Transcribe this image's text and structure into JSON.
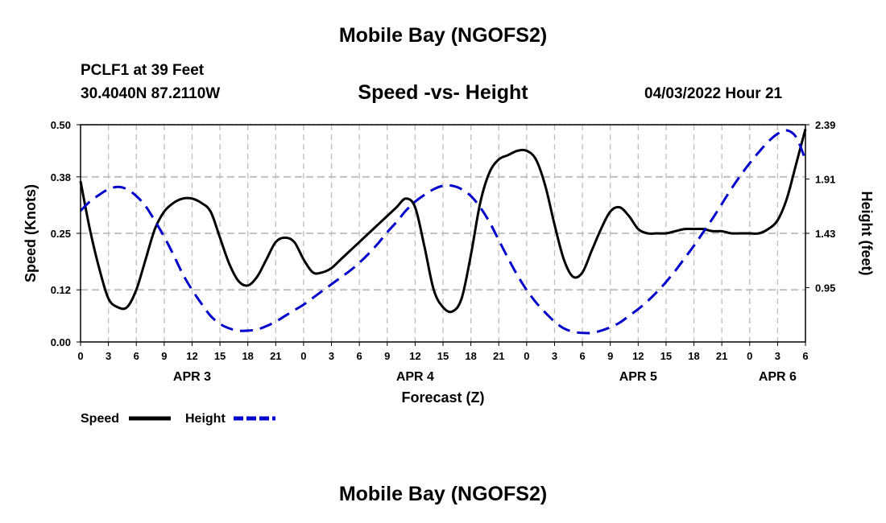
{
  "header": {
    "title": "Mobile Bay (NGOFS2)",
    "station": "PCLF1 at 39 Feet",
    "coords": "30.4040N  87.2110W",
    "subtitle": "Speed -vs- Height",
    "datetime": "04/03/2022 Hour 21",
    "footer_title": "Mobile Bay (NGOFS2)"
  },
  "chart_data": {
    "type": "line",
    "xlabel": "Forecast (Z)",
    "ylabel": "Speed (Knots)",
    "y2label": "Height (feet)",
    "x_range_hours": [
      0,
      78
    ],
    "ylim": [
      0,
      0.5
    ],
    "y2lim": [
      0.47,
      2.39
    ],
    "y_ticks": [
      "0.00",
      "0.12",
      "0.25",
      "0.38",
      "0.50"
    ],
    "y2_ticks": [
      "0.95",
      "1.43",
      "1.91",
      "2.39"
    ],
    "x_tick_labels": [
      "0",
      "3",
      "6",
      "9",
      "12",
      "15",
      "18",
      "21",
      "0",
      "3",
      "6",
      "9",
      "12",
      "15",
      "18",
      "21",
      "0",
      "3",
      "6",
      "9",
      "12",
      "15",
      "18",
      "21",
      "0",
      "3",
      "6"
    ],
    "day_labels": [
      {
        "label": "APR 3",
        "hour": 12
      },
      {
        "label": "APR 4",
        "hour": 36
      },
      {
        "label": "APR 5",
        "hour": 60
      },
      {
        "label": "APR 6",
        "hour": 75
      }
    ],
    "grid": true,
    "series": [
      {
        "name": "Speed",
        "axis": "left",
        "color": "#000000",
        "dash": "solid",
        "x": [
          0,
          1,
          2,
          3,
          4,
          5,
          6,
          7,
          8,
          9,
          10,
          11,
          12,
          13,
          14,
          15,
          16,
          17,
          18,
          19,
          20,
          21,
          22,
          23,
          24,
          25,
          26,
          27,
          28,
          29,
          30,
          31,
          32,
          33,
          34,
          35,
          36,
          37,
          38,
          39,
          40,
          41,
          42,
          43,
          44,
          45,
          46,
          47,
          48,
          49,
          50,
          51,
          52,
          53,
          54,
          55,
          56,
          57,
          58,
          59,
          60,
          61,
          62,
          63,
          64,
          65,
          66,
          67,
          68,
          69,
          70,
          71,
          72,
          73,
          74,
          75,
          76,
          77,
          78
        ],
        "values": [
          0.37,
          0.26,
          0.17,
          0.1,
          0.08,
          0.08,
          0.12,
          0.19,
          0.26,
          0.3,
          0.32,
          0.33,
          0.33,
          0.32,
          0.3,
          0.24,
          0.18,
          0.14,
          0.13,
          0.15,
          0.19,
          0.23,
          0.24,
          0.23,
          0.19,
          0.16,
          0.16,
          0.17,
          0.19,
          0.21,
          0.23,
          0.25,
          0.27,
          0.29,
          0.31,
          0.33,
          0.31,
          0.22,
          0.12,
          0.08,
          0.07,
          0.1,
          0.2,
          0.32,
          0.39,
          0.42,
          0.43,
          0.44,
          0.44,
          0.42,
          0.36,
          0.27,
          0.19,
          0.15,
          0.16,
          0.21,
          0.26,
          0.3,
          0.31,
          0.29,
          0.26,
          0.25,
          0.25,
          0.25,
          0.255,
          0.26,
          0.26,
          0.26,
          0.255,
          0.255,
          0.25,
          0.25,
          0.25,
          0.25,
          0.26,
          0.28,
          0.33,
          0.41,
          0.49
        ]
      },
      {
        "name": "Height",
        "axis": "right",
        "color": "#0000cc",
        "dash": "dashed",
        "x": [
          0,
          1,
          2,
          3,
          4,
          5,
          6,
          7,
          8,
          9,
          10,
          11,
          12,
          13,
          14,
          15,
          16,
          17,
          18,
          19,
          20,
          21,
          22,
          23,
          24,
          25,
          26,
          27,
          28,
          29,
          30,
          31,
          32,
          33,
          34,
          35,
          36,
          37,
          38,
          39,
          40,
          41,
          42,
          43,
          44,
          45,
          46,
          47,
          48,
          49,
          50,
          51,
          52,
          53,
          54,
          55,
          56,
          57,
          58,
          59,
          60,
          61,
          62,
          63,
          64,
          65,
          66,
          67,
          68,
          69,
          70,
          71,
          72,
          73,
          74,
          75,
          76,
          77,
          78
        ],
        "values": [
          1.63,
          1.71,
          1.77,
          1.82,
          1.84,
          1.82,
          1.76,
          1.67,
          1.54,
          1.4,
          1.24,
          1.07,
          0.93,
          0.81,
          0.7,
          0.63,
          0.59,
          0.57,
          0.57,
          0.58,
          0.61,
          0.65,
          0.7,
          0.75,
          0.8,
          0.86,
          0.92,
          0.98,
          1.04,
          1.1,
          1.17,
          1.25,
          1.34,
          1.44,
          1.53,
          1.63,
          1.71,
          1.77,
          1.82,
          1.85,
          1.85,
          1.82,
          1.76,
          1.66,
          1.53,
          1.37,
          1.21,
          1.06,
          0.93,
          0.82,
          0.73,
          0.65,
          0.59,
          0.56,
          0.55,
          0.55,
          0.57,
          0.6,
          0.64,
          0.7,
          0.76,
          0.83,
          0.91,
          1.0,
          1.1,
          1.21,
          1.32,
          1.44,
          1.56,
          1.69,
          1.82,
          1.94,
          2.05,
          2.15,
          2.24,
          2.31,
          2.34,
          2.28,
          2.08
        ]
      }
    ],
    "legend": {
      "placement": "bottom-left",
      "entries": [
        "Speed",
        "Height"
      ]
    }
  }
}
